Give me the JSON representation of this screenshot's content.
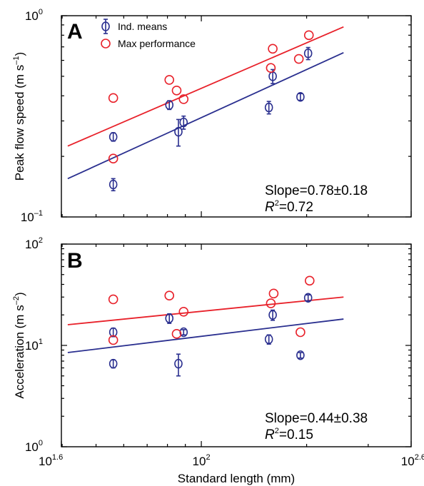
{
  "colors": {
    "ind_means": "#2a2f8f",
    "max_performance": "#e8212a",
    "axes": "#000000"
  },
  "chart_data": [
    {
      "type": "scatter",
      "panel_label": "A",
      "xlabel": "Standard length (mm)",
      "ylabel": "Peak flow speed (m s–1)",
      "ylabel_main": "Peak flow speed (m s",
      "ylabel_sup": "–1",
      "ylabel_tail": ")",
      "xscale": "log",
      "yscale": "log",
      "xlim": [
        39.8,
        398
      ],
      "ylim": [
        0.1,
        1.0
      ],
      "x_ticks": [
        {
          "base": "10",
          "exp": "1.6",
          "value": 39.8
        },
        {
          "base": "10",
          "exp": "2",
          "value": 100
        },
        {
          "base": "10",
          "exp": "2.6",
          "value": 398
        }
      ],
      "y_ticks": [
        {
          "base": "10",
          "exp": "–1",
          "value": 0.1
        },
        {
          "base": "10",
          "exp": "0",
          "value": 1.0
        }
      ],
      "legend": {
        "position": "top-left",
        "entries": [
          "Ind. means",
          "Max performance"
        ]
      },
      "annotation_slope": "Slope=0.78±0.18",
      "annotation_r2_italic": "R",
      "annotation_r2_sup": "2",
      "annotation_r2_value": "=0.72",
      "series": [
        {
          "name": "Ind. means",
          "marker": "circle-errorbar",
          "points": [
            {
              "x": 56,
              "y": 0.25,
              "err": 0.012
            },
            {
              "x": 56,
              "y": 0.145,
              "err": 0.01
            },
            {
              "x": 81,
              "y": 0.36,
              "err": 0.018
            },
            {
              "x": 86,
              "y": 0.265,
              "err": 0.04
            },
            {
              "x": 89,
              "y": 0.295,
              "err": 0.022
            },
            {
              "x": 156,
              "y": 0.35,
              "err": 0.025
            },
            {
              "x": 160,
              "y": 0.5,
              "err": 0.04
            },
            {
              "x": 192,
              "y": 0.395,
              "err": 0.015
            },
            {
              "x": 202,
              "y": 0.65,
              "err": 0.045
            }
          ],
          "fit": {
            "x": [
              41.5,
              255
            ],
            "y": [
              0.155,
              0.655
            ]
          }
        },
        {
          "name": "Max performance",
          "marker": "circle",
          "points": [
            {
              "x": 56,
              "y": 0.39
            },
            {
              "x": 56,
              "y": 0.195
            },
            {
              "x": 81,
              "y": 0.48
            },
            {
              "x": 85,
              "y": 0.425
            },
            {
              "x": 89,
              "y": 0.385
            },
            {
              "x": 160,
              "y": 0.685
            },
            {
              "x": 158,
              "y": 0.55
            },
            {
              "x": 190,
              "y": 0.61
            },
            {
              "x": 203,
              "y": 0.8
            }
          ],
          "fit": {
            "x": [
              41.5,
              255
            ],
            "y": [
              0.225,
              0.88
            ]
          }
        }
      ]
    },
    {
      "type": "scatter",
      "panel_label": "B",
      "xlabel": "Standard length (mm)",
      "ylabel": "Acceleration (m s–2)",
      "ylabel_main": "Acceleration (m s",
      "ylabel_sup": "–2",
      "ylabel_tail": ")",
      "xscale": "log",
      "yscale": "log",
      "xlim": [
        39.8,
        398
      ],
      "ylim": [
        1,
        100
      ],
      "x_ticks": [
        {
          "base": "10",
          "exp": "1.6",
          "value": 39.8
        },
        {
          "base": "10",
          "exp": "2",
          "value": 100
        },
        {
          "base": "10",
          "exp": "2.6",
          "value": 398
        }
      ],
      "y_ticks": [
        {
          "base": "10",
          "exp": "0",
          "value": 1
        },
        {
          "base": "10",
          "exp": "1",
          "value": 10
        },
        {
          "base": "10",
          "exp": "2",
          "value": 100
        }
      ],
      "annotation_slope": "Slope=0.44±0.38",
      "annotation_r2_italic": "R",
      "annotation_r2_sup": "2",
      "annotation_r2_value": "=0.15",
      "series": [
        {
          "name": "Ind. means",
          "marker": "circle-errorbar",
          "points": [
            {
              "x": 56,
              "y": 13.5,
              "err": 1.3
            },
            {
              "x": 56,
              "y": 6.6,
              "err": 0.6
            },
            {
              "x": 81,
              "y": 18.5,
              "err": 2.0
            },
            {
              "x": 86,
              "y": 6.6,
              "err": 1.6
            },
            {
              "x": 89,
              "y": 13.5,
              "err": 0.8
            },
            {
              "x": 156,
              "y": 11.5,
              "err": 1.2
            },
            {
              "x": 160,
              "y": 20,
              "err": 2.3
            },
            {
              "x": 192,
              "y": 8.0,
              "err": 0.5
            },
            {
              "x": 202,
              "y": 29.5,
              "err": 2.0
            }
          ],
          "fit": {
            "x": [
              41.5,
              255
            ],
            "y": [
              8.5,
              18.2
            ]
          }
        },
        {
          "name": "Max performance",
          "marker": "circle",
          "points": [
            {
              "x": 56,
              "y": 28.5
            },
            {
              "x": 56,
              "y": 11.3
            },
            {
              "x": 81,
              "y": 31
            },
            {
              "x": 85,
              "y": 13
            },
            {
              "x": 89,
              "y": 21.5
            },
            {
              "x": 158,
              "y": 26
            },
            {
              "x": 161,
              "y": 32.5
            },
            {
              "x": 192,
              "y": 13.5
            },
            {
              "x": 204,
              "y": 43.5
            }
          ],
          "fit": {
            "x": [
              41.5,
              255
            ],
            "y": [
              16,
              30
            ]
          }
        }
      ]
    }
  ]
}
